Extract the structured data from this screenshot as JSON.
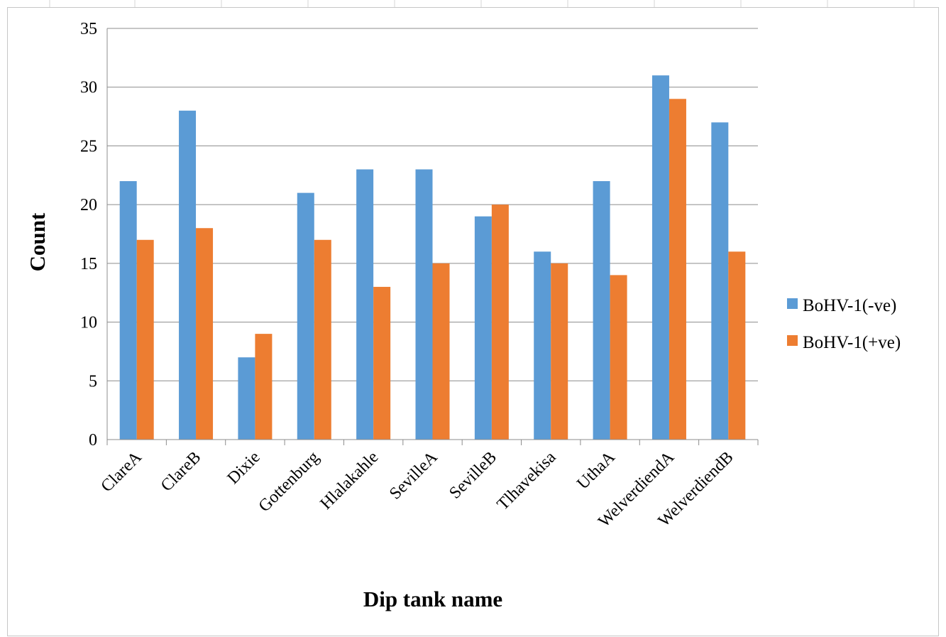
{
  "chart_data": {
    "type": "bar",
    "title": "",
    "xlabel": "Dip tank name",
    "ylabel": "Count",
    "ylim": [
      0,
      35
    ],
    "yticks": [
      0,
      5,
      10,
      15,
      20,
      25,
      30,
      35
    ],
    "grid": true,
    "legend_position": "right",
    "categories": [
      "ClareA",
      "ClareB",
      "Dixie",
      "Gottenburg",
      "Hlalakahle",
      "SevilleA",
      "SevilleB",
      "Tlhavekisa",
      "UthaA",
      "WelverdiendA",
      "WelverdiendB"
    ],
    "series": [
      {
        "name": "BoHV-1(-ve)",
        "color": "#5b9bd5",
        "values": [
          22,
          28,
          7,
          21,
          23,
          23,
          19,
          16,
          22,
          31,
          27
        ]
      },
      {
        "name": "BoHV-1(+ve)",
        "color": "#ed7d31",
        "values": [
          17,
          18,
          9,
          17,
          13,
          15,
          20,
          15,
          14,
          29,
          16
        ]
      }
    ]
  }
}
